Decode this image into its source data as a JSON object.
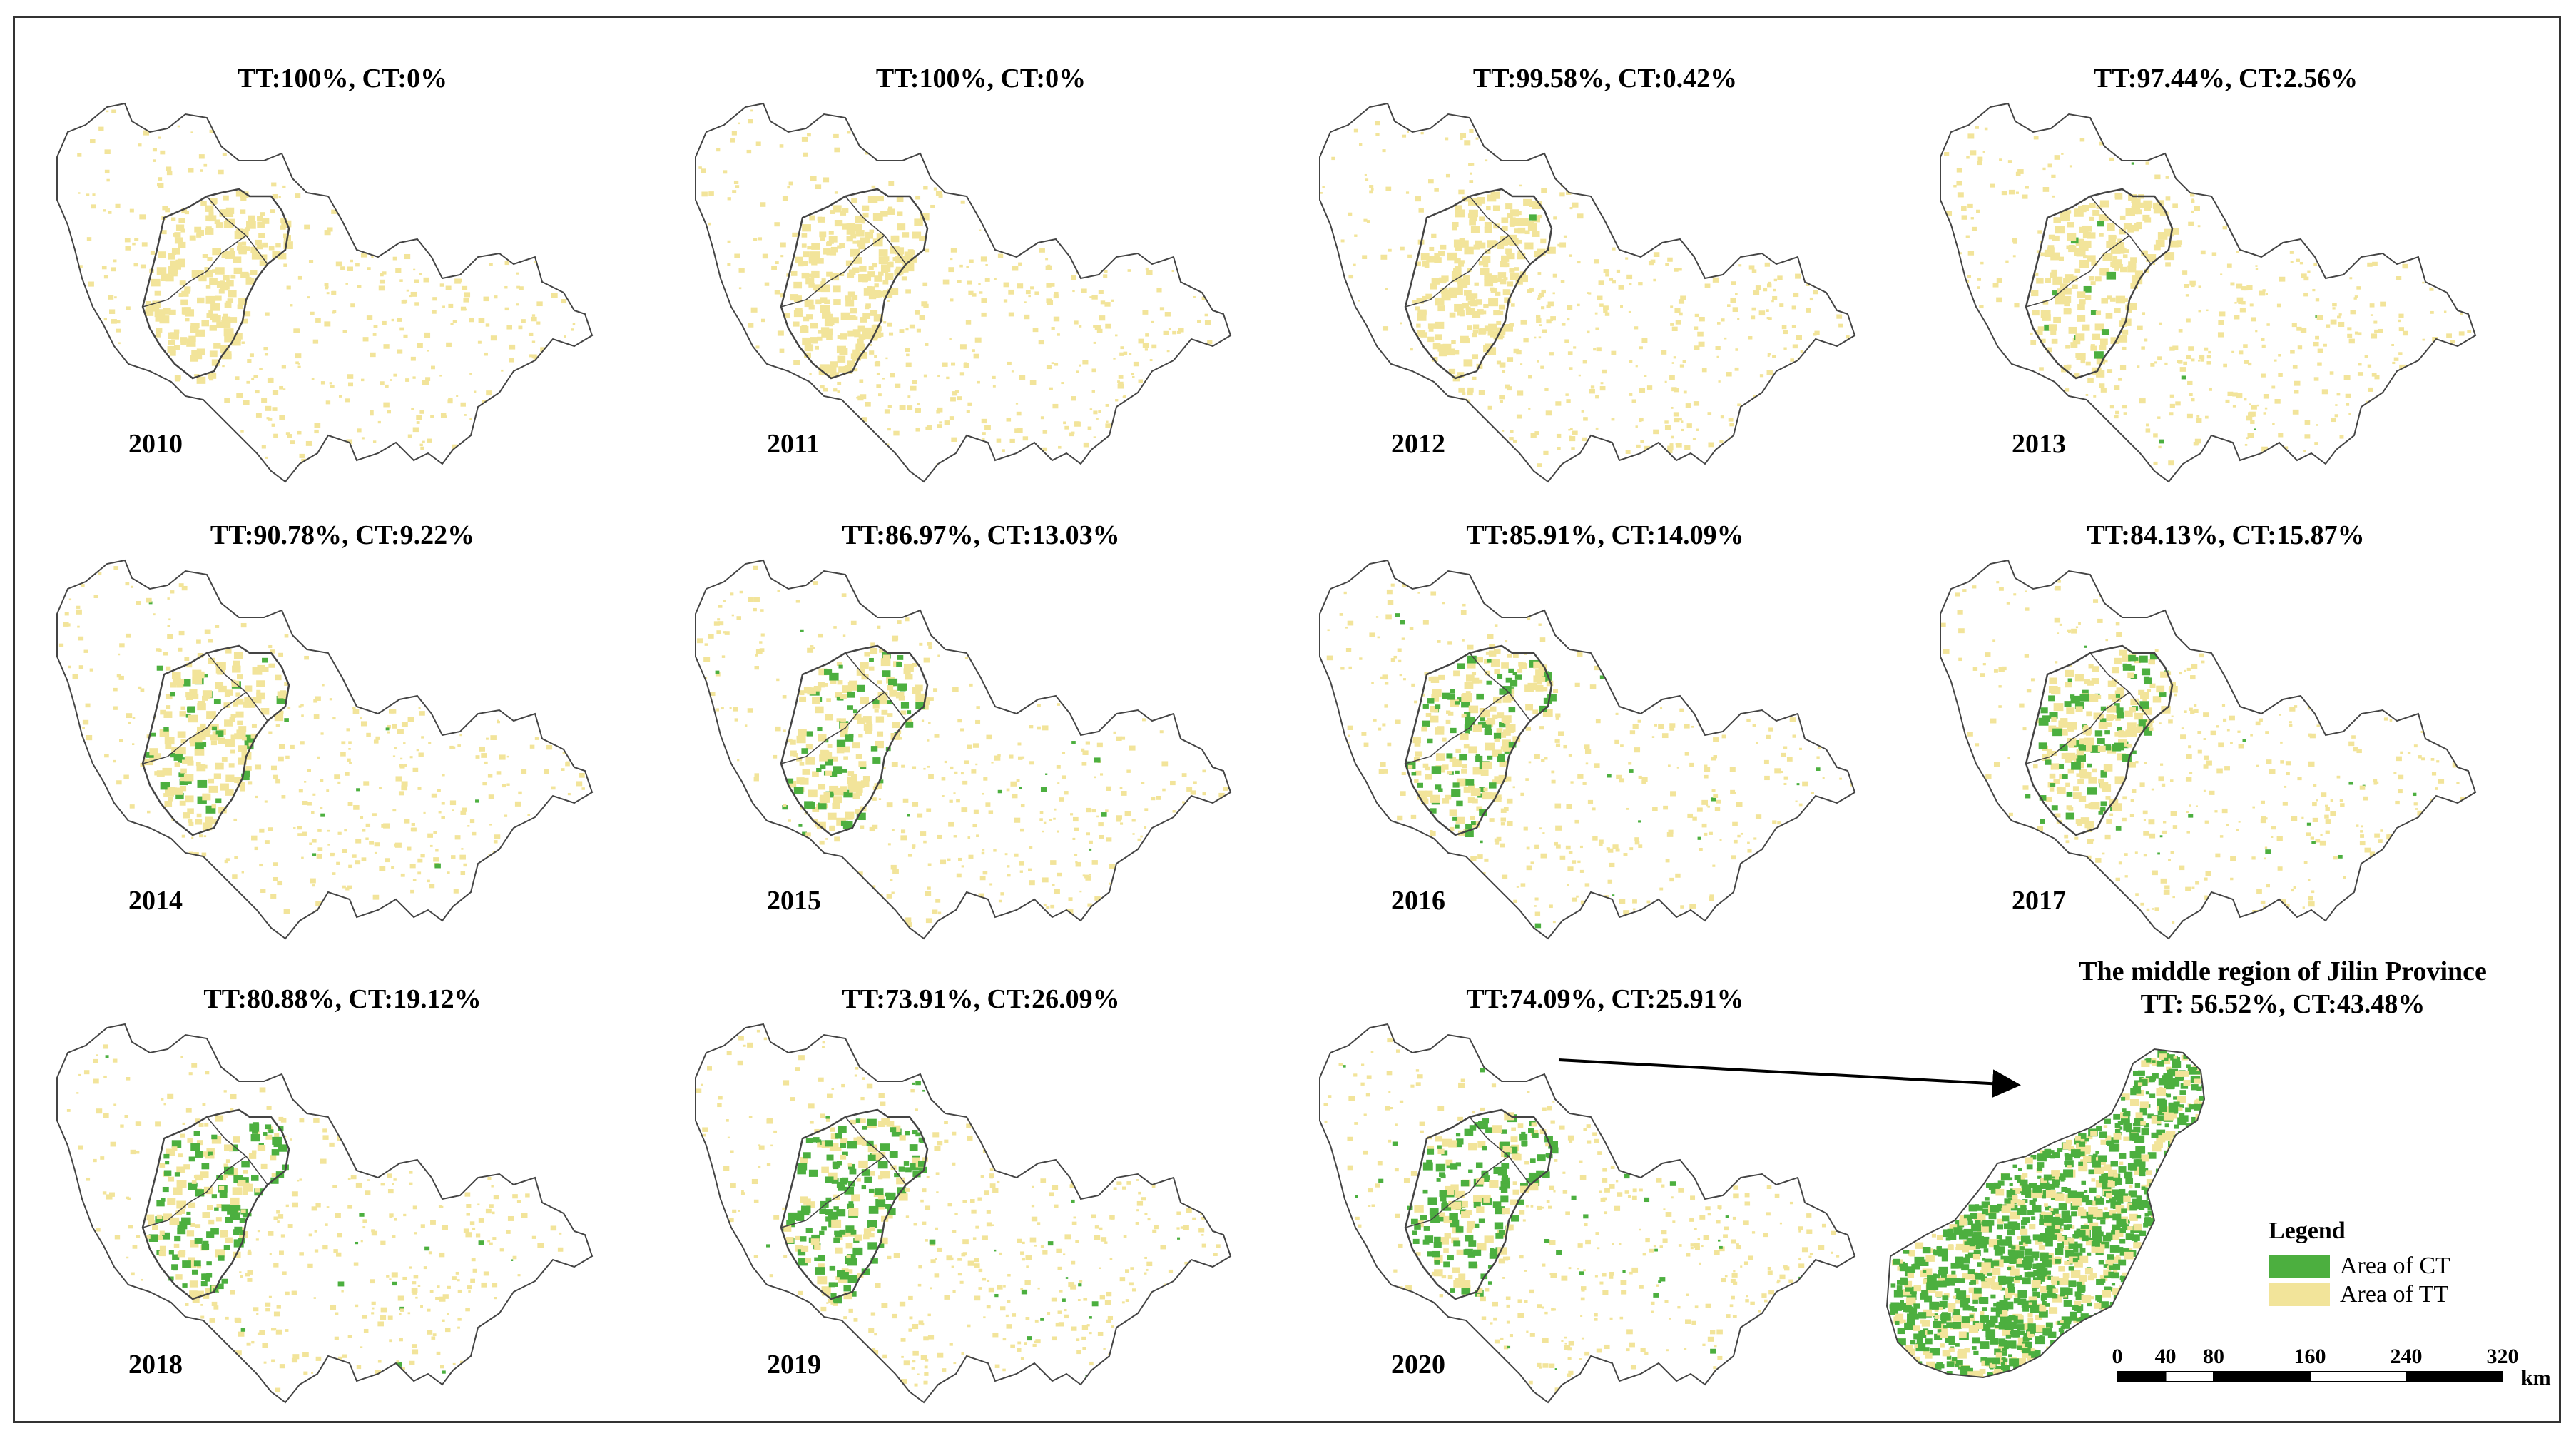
{
  "colors": {
    "ct": "#4caf3f",
    "tt": "#f2e49a",
    "boundary": "#444444"
  },
  "panels": [
    {
      "title": "TT:100%, CT:0%",
      "year": "2010",
      "ct": 0
    },
    {
      "title": "TT:100%, CT:0%",
      "year": "2011",
      "ct": 0
    },
    {
      "title": "TT:99.58%, CT:0.42%",
      "year": "2012",
      "ct": 0.42
    },
    {
      "title": "TT:97.44%, CT:2.56%",
      "year": "2013",
      "ct": 2.56
    },
    {
      "title": "TT:90.78%, CT:9.22%",
      "year": "2014",
      "ct": 9.22
    },
    {
      "title": "TT:86.97%, CT:13.03%",
      "year": "2015",
      "ct": 13.03
    },
    {
      "title": "TT:85.91%, CT:14.09%",
      "year": "2016",
      "ct": 14.09
    },
    {
      "title": "TT:84.13%, CT:15.87%",
      "year": "2017",
      "ct": 15.87
    },
    {
      "title": "TT:80.88%, CT:19.12%",
      "year": "2018",
      "ct": 19.12
    },
    {
      "title": "TT:73.91%, CT:26.09%",
      "year": "2019",
      "ct": 26.09
    },
    {
      "title": "TT:74.09%, CT:25.91%",
      "year": "2020",
      "ct": 25.91
    }
  ],
  "inset": {
    "title_line1": "The middle region of Jilin Province",
    "title_line2": "TT: 56.52%, CT:43.48%",
    "ct": 43.48
  },
  "legend": {
    "title": "Legend",
    "items": [
      {
        "label": "Area of CT"
      },
      {
        "label": "Area of TT"
      }
    ]
  },
  "scale": {
    "ticks": [
      "0",
      "40",
      "80",
      "160",
      "240",
      "320"
    ],
    "unit": "km"
  }
}
